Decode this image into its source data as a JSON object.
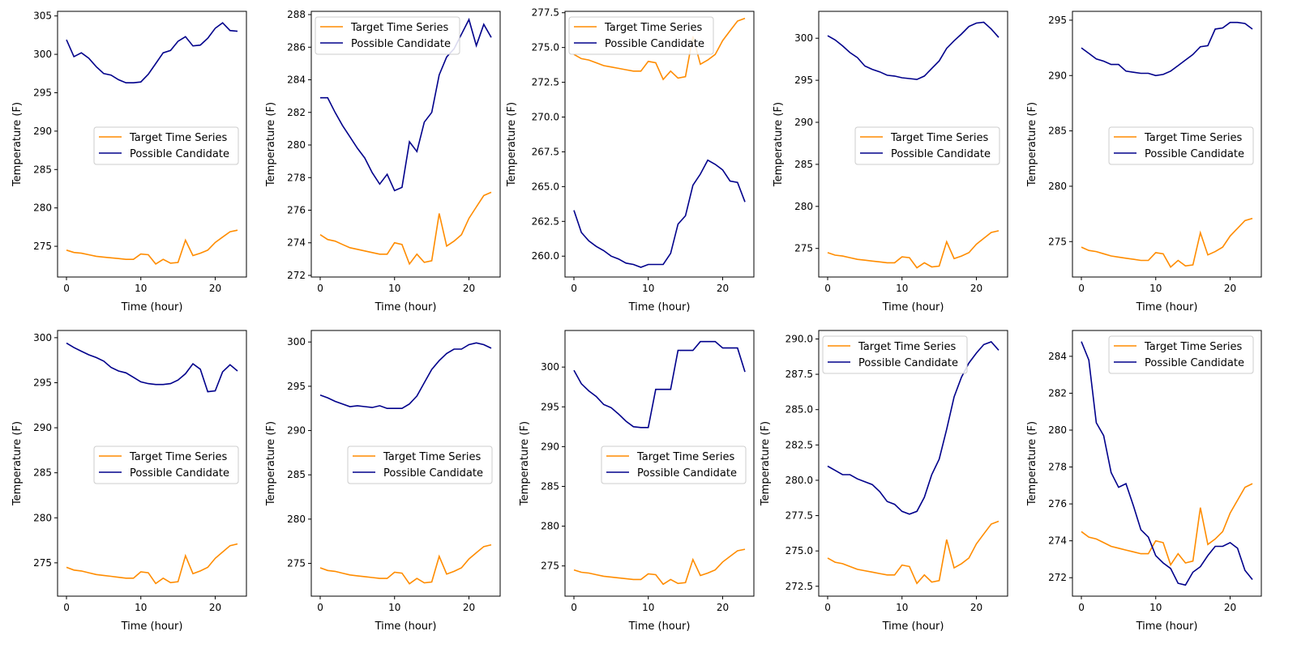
{
  "colors": {
    "target": "#ff8c00",
    "candidate": "#00008b",
    "axes": "#000000",
    "legend_frame": "#cccccc"
  },
  "target_series": [
    274.5,
    274.2,
    274.1,
    273.9,
    273.7,
    273.6,
    273.5,
    273.4,
    273.3,
    273.3,
    274.0,
    273.9,
    272.7,
    273.3,
    272.8,
    272.9,
    275.8,
    273.8,
    274.1,
    274.5,
    275.5,
    276.2,
    276.9,
    277.1
  ],
  "chart_data": [
    {
      "type": "line",
      "xlabel": "Time (hour)",
      "ylabel": "Temperature (F)",
      "xlim": [
        -1.2,
        24.2
      ],
      "ylim": [
        271.0,
        305.6
      ],
      "xticks": [
        0,
        10,
        20
      ],
      "yticks": [
        275,
        280,
        285,
        290,
        295,
        300,
        305
      ],
      "legend": "center-right",
      "series": [
        {
          "name": "Target Time Series",
          "values": "target"
        },
        {
          "name": "Possible Candidate",
          "values": [
            301.9,
            299.7,
            300.2,
            299.5,
            298.4,
            297.5,
            297.3,
            296.7,
            296.3,
            296.3,
            296.4,
            297.4,
            298.8,
            300.2,
            300.5,
            301.7,
            302.3,
            301.1,
            301.2,
            302.1,
            303.4,
            304.1,
            303.1,
            303.0
          ]
        }
      ]
    },
    {
      "type": "line",
      "xlabel": "Time (hour)",
      "ylabel": "Temperature (F)",
      "xlim": [
        -1.2,
        24.2
      ],
      "ylim": [
        271.9,
        288.2
      ],
      "xticks": [
        0,
        10,
        20
      ],
      "yticks": [
        272,
        274,
        276,
        278,
        280,
        282,
        284,
        286,
        288
      ],
      "legend": "top-left",
      "series": [
        {
          "name": "Target Time Series",
          "values": "target"
        },
        {
          "name": "Possible Candidate",
          "values": [
            282.9,
            282.9,
            282.0,
            281.2,
            280.5,
            279.8,
            279.2,
            278.3,
            277.6,
            278.2,
            277.2,
            277.4,
            280.2,
            279.6,
            281.4,
            282.0,
            284.3,
            285.4,
            285.9,
            286.8,
            287.7,
            286.1,
            287.4,
            286.6
          ]
        }
      ]
    },
    {
      "type": "line",
      "xlabel": "Time (hour)",
      "ylabel": "Temperature (F)",
      "xlim": [
        -1.2,
        24.2
      ],
      "ylim": [
        258.5,
        277.6
      ],
      "xticks": [
        0,
        10,
        20
      ],
      "yticks": [
        260.0,
        262.5,
        265.0,
        267.5,
        270.0,
        272.5,
        275.0,
        277.5
      ],
      "tick_decimals": 1,
      "legend": "top-left",
      "series": [
        {
          "name": "Target Time Series",
          "values": "target"
        },
        {
          "name": "Possible Candidate",
          "values": [
            263.3,
            261.7,
            261.1,
            260.7,
            260.4,
            260.0,
            259.8,
            259.5,
            259.4,
            259.2,
            259.4,
            259.4,
            259.4,
            260.2,
            262.3,
            262.9,
            265.1,
            265.9,
            266.9,
            266.6,
            266.2,
            265.4,
            265.3,
            263.9
          ]
        }
      ]
    },
    {
      "type": "line",
      "xlabel": "Time (hour)",
      "ylabel": "Temperature (F)",
      "xlim": [
        -1.2,
        24.2
      ],
      "ylim": [
        271.6,
        303.2
      ],
      "xticks": [
        0,
        10,
        20
      ],
      "yticks": [
        275,
        280,
        285,
        290,
        295,
        300
      ],
      "legend": "center-right",
      "series": [
        {
          "name": "Target Time Series",
          "values": "target"
        },
        {
          "name": "Possible Candidate",
          "values": [
            300.3,
            299.8,
            299.1,
            298.3,
            297.7,
            296.7,
            296.3,
            296.0,
            295.6,
            295.5,
            295.3,
            295.2,
            295.1,
            295.5,
            296.4,
            297.3,
            298.8,
            299.7,
            300.5,
            301.4,
            301.8,
            301.9,
            301.1,
            300.1
          ]
        }
      ]
    },
    {
      "type": "line",
      "xlabel": "Time (hour)",
      "ylabel": "Temperature (F)",
      "xlim": [
        -1.2,
        24.2
      ],
      "ylim": [
        271.8,
        295.8
      ],
      "xticks": [
        0,
        10,
        20
      ],
      "yticks": [
        275,
        280,
        285,
        290,
        295
      ],
      "legend": "center-right",
      "series": [
        {
          "name": "Target Time Series",
          "values": "target"
        },
        {
          "name": "Possible Candidate",
          "values": [
            292.5,
            292.0,
            291.5,
            291.3,
            291.0,
            291.0,
            290.4,
            290.3,
            290.2,
            290.2,
            290.0,
            290.1,
            290.4,
            290.9,
            291.4,
            291.9,
            292.6,
            292.7,
            294.2,
            294.3,
            294.8,
            294.8,
            294.7,
            294.2
          ]
        }
      ]
    },
    {
      "type": "line",
      "xlabel": "Time (hour)",
      "ylabel": "Temperature (F)",
      "xlim": [
        -1.2,
        24.2
      ],
      "ylim": [
        271.3,
        300.8
      ],
      "xticks": [
        0,
        10,
        20
      ],
      "yticks": [
        275,
        280,
        285,
        290,
        295,
        300
      ],
      "legend": "center-right",
      "series": [
        {
          "name": "Target Time Series",
          "values": "target"
        },
        {
          "name": "Possible Candidate",
          "values": [
            299.4,
            298.9,
            298.5,
            298.1,
            297.8,
            297.4,
            296.7,
            296.3,
            296.1,
            295.6,
            295.1,
            294.9,
            294.8,
            294.8,
            294.9,
            295.3,
            296.0,
            297.1,
            296.5,
            294.0,
            294.1,
            296.2,
            297.0,
            296.3
          ]
        }
      ]
    },
    {
      "type": "line",
      "xlabel": "Time (hour)",
      "ylabel": "Temperature (F)",
      "xlim": [
        -1.2,
        24.2
      ],
      "ylim": [
        271.3,
        301.3
      ],
      "xticks": [
        0,
        10,
        20
      ],
      "yticks": [
        275,
        280,
        285,
        290,
        295,
        300
      ],
      "legend": "center-right",
      "series": [
        {
          "name": "Target Time Series",
          "values": "target"
        },
        {
          "name": "Possible Candidate",
          "values": [
            294.0,
            293.7,
            293.3,
            293.0,
            292.7,
            292.8,
            292.7,
            292.6,
            292.8,
            292.5,
            292.5,
            292.5,
            293.0,
            293.9,
            295.4,
            296.9,
            297.9,
            298.7,
            299.2,
            299.2,
            299.7,
            299.9,
            299.7,
            299.3
          ]
        }
      ]
    },
    {
      "type": "line",
      "xlabel": "Time (hour)",
      "ylabel": "Temperature (F)",
      "xlim": [
        -1.2,
        24.2
      ],
      "ylim": [
        271.2,
        304.6
      ],
      "xticks": [
        0,
        10,
        20
      ],
      "yticks": [
        275,
        280,
        285,
        290,
        295,
        300
      ],
      "legend": "center-right",
      "series": [
        {
          "name": "Target Time Series",
          "values": "target"
        },
        {
          "name": "Possible Candidate",
          "values": [
            299.6,
            297.9,
            297.0,
            296.3,
            295.3,
            294.9,
            294.1,
            293.2,
            292.5,
            292.4,
            292.4,
            297.2,
            297.2,
            297.2,
            302.1,
            302.1,
            302.1,
            303.2,
            303.2,
            303.2,
            302.4,
            302.4,
            302.4,
            299.4
          ]
        }
      ]
    },
    {
      "type": "line",
      "xlabel": "Time (hour)",
      "ylabel": "Temperature (F)",
      "xlim": [
        -1.2,
        24.2
      ],
      "ylim": [
        271.8,
        290.6
      ],
      "xticks": [
        0,
        10,
        20
      ],
      "yticks": [
        272.5,
        275.0,
        277.5,
        280.0,
        282.5,
        285.0,
        287.5,
        290.0
      ],
      "tick_decimals": 1,
      "legend": "top-left",
      "series": [
        {
          "name": "Target Time Series",
          "values": "target"
        },
        {
          "name": "Possible Candidate",
          "values": [
            281.0,
            280.7,
            280.4,
            280.4,
            280.1,
            279.9,
            279.7,
            279.2,
            278.5,
            278.3,
            277.8,
            277.6,
            277.8,
            278.8,
            280.4,
            281.5,
            283.6,
            285.9,
            287.3,
            288.3,
            289.0,
            289.6,
            289.8,
            289.2
          ]
        }
      ]
    },
    {
      "type": "line",
      "xlabel": "Time (hour)",
      "ylabel": "Temperature (F)",
      "xlim": [
        -1.2,
        24.2
      ],
      "ylim": [
        271.0,
        285.4
      ],
      "xticks": [
        0,
        10,
        20
      ],
      "yticks": [
        272,
        274,
        276,
        278,
        280,
        282,
        284
      ],
      "legend": "top-right",
      "series": [
        {
          "name": "Target Time Series",
          "values": "target"
        },
        {
          "name": "Possible Candidate",
          "values": [
            284.8,
            283.8,
            280.4,
            279.7,
            277.7,
            276.9,
            277.1,
            275.9,
            274.6,
            274.2,
            273.2,
            272.8,
            272.5,
            271.7,
            271.6,
            272.3,
            272.6,
            273.2,
            273.7,
            273.7,
            273.9,
            273.6,
            272.4,
            271.9
          ]
        }
      ]
    }
  ]
}
